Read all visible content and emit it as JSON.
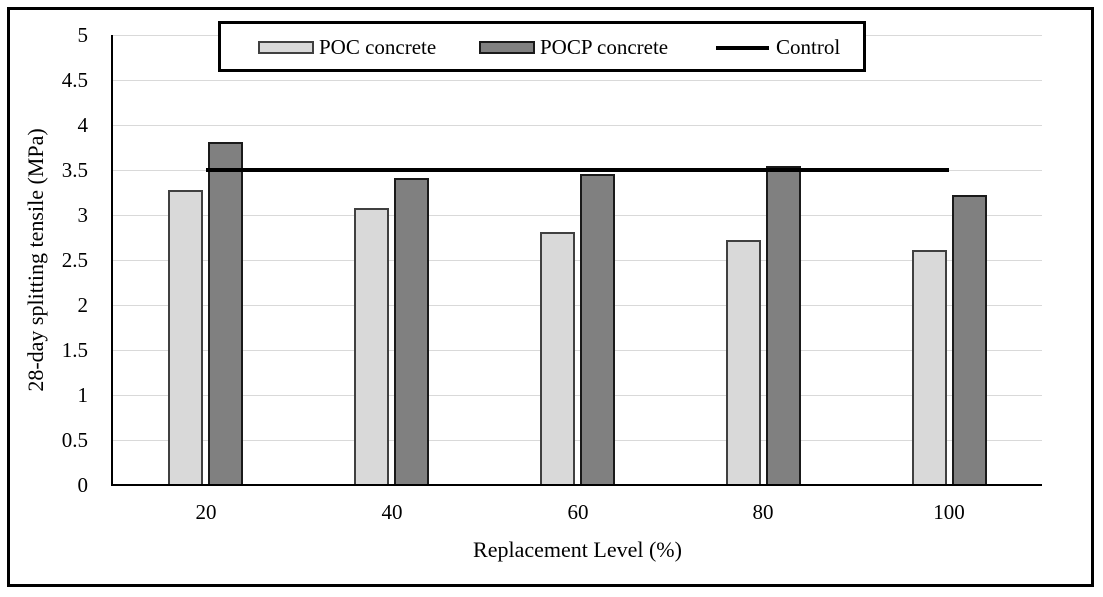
{
  "chart_data": {
    "type": "bar",
    "title": "",
    "categories": [
      "20",
      "40",
      "60",
      "80",
      "100"
    ],
    "series": [
      {
        "name": "POC concrete",
        "values": [
          3.28,
          3.08,
          2.81,
          2.72,
          2.61
        ],
        "fill": "#d9d9d9",
        "border": "#404040"
      },
      {
        "name": "POCP concrete",
        "values": [
          3.81,
          3.41,
          3.46,
          3.54,
          3.22
        ],
        "fill": "#808080",
        "border": "#1a1a1a"
      }
    ],
    "control_line": {
      "name": "Control",
      "value": 3.5,
      "color": "#000000"
    },
    "xlabel": "Replacement Level (%)",
    "ylabel": "28-day splitting tensile (MPa)",
    "ylim": [
      0,
      5
    ],
    "ytick_step": 0.5,
    "ytick_labels": [
      "0",
      "0.5",
      "1",
      "1.5",
      "2",
      "2.5",
      "3",
      "3.5",
      "4",
      "4.5",
      "5"
    ],
    "grid": "horizontal-on",
    "gridline_color": "#d9d9d9",
    "axis_color": "#000000",
    "legend_position": "top-center",
    "legend_border_color": "#000000"
  },
  "legend": {
    "items": [
      {
        "label": "POC concrete"
      },
      {
        "label": "POCP concrete"
      },
      {
        "label": "Control"
      }
    ]
  },
  "axes": {
    "x_title": "Replacement Level (%)",
    "y_title": "28-day splitting tensile (MPa)"
  }
}
